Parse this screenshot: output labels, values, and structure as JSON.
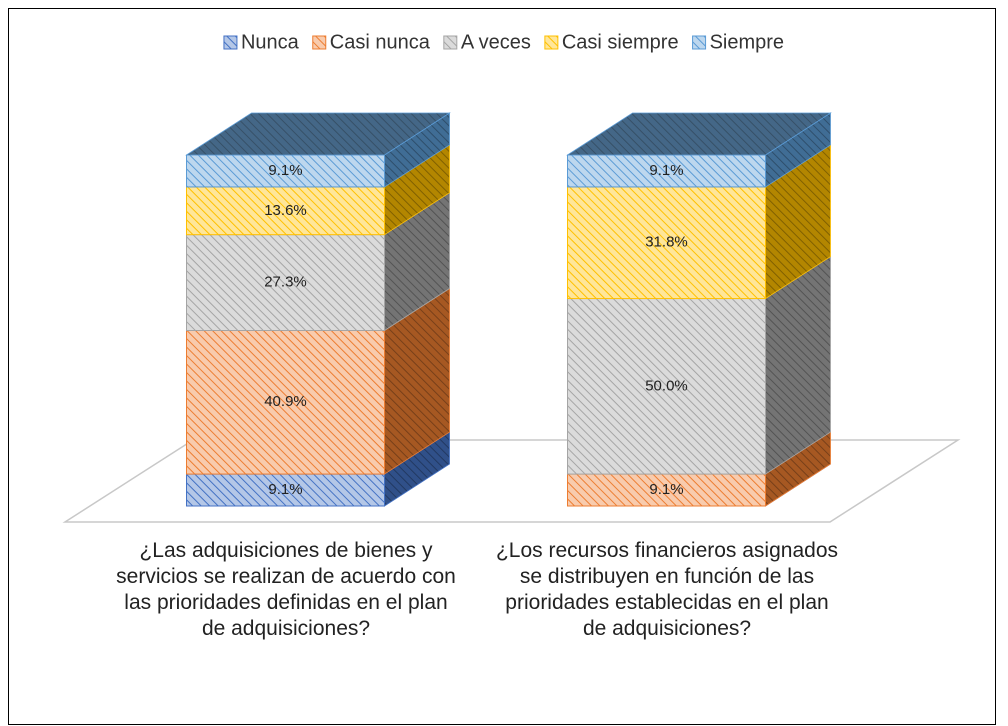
{
  "chart_data": {
    "type": "bar",
    "stacked": true,
    "three_d": true,
    "categories": [
      "¿Las adquisiciones de bienes y servicios se realizan de acuerdo con las prioridades definidas en el plan de adquisiciones?",
      "¿Los recursos financieros asignados se distribuyen en función de las prioridades establecidas en el plan de adquisiciones?"
    ],
    "series": [
      {
        "name": "Nunca",
        "color": "#4472c4",
        "values": [
          9.1,
          0
        ],
        "value_labels": [
          "9.1%",
          null
        ]
      },
      {
        "name": "Casi nunca",
        "color": "#ed7d31",
        "values": [
          40.9,
          9.1
        ],
        "value_labels": [
          "40.9%",
          "9.1%"
        ]
      },
      {
        "name": "A veces",
        "color": "#a5a5a5",
        "values": [
          27.3,
          50.0
        ],
        "value_labels": [
          "27.3%",
          "50.0%"
        ]
      },
      {
        "name": "Casi siempre",
        "color": "#ffc000",
        "values": [
          13.6,
          31.8
        ],
        "value_labels": [
          "13.6%",
          "31.8%"
        ]
      },
      {
        "name": "Siempre",
        "color": "#5b9bd5",
        "values": [
          9.1,
          9.1
        ],
        "value_labels": [
          "9.1%",
          "9.1%"
        ]
      }
    ],
    "legend": "top"
  }
}
